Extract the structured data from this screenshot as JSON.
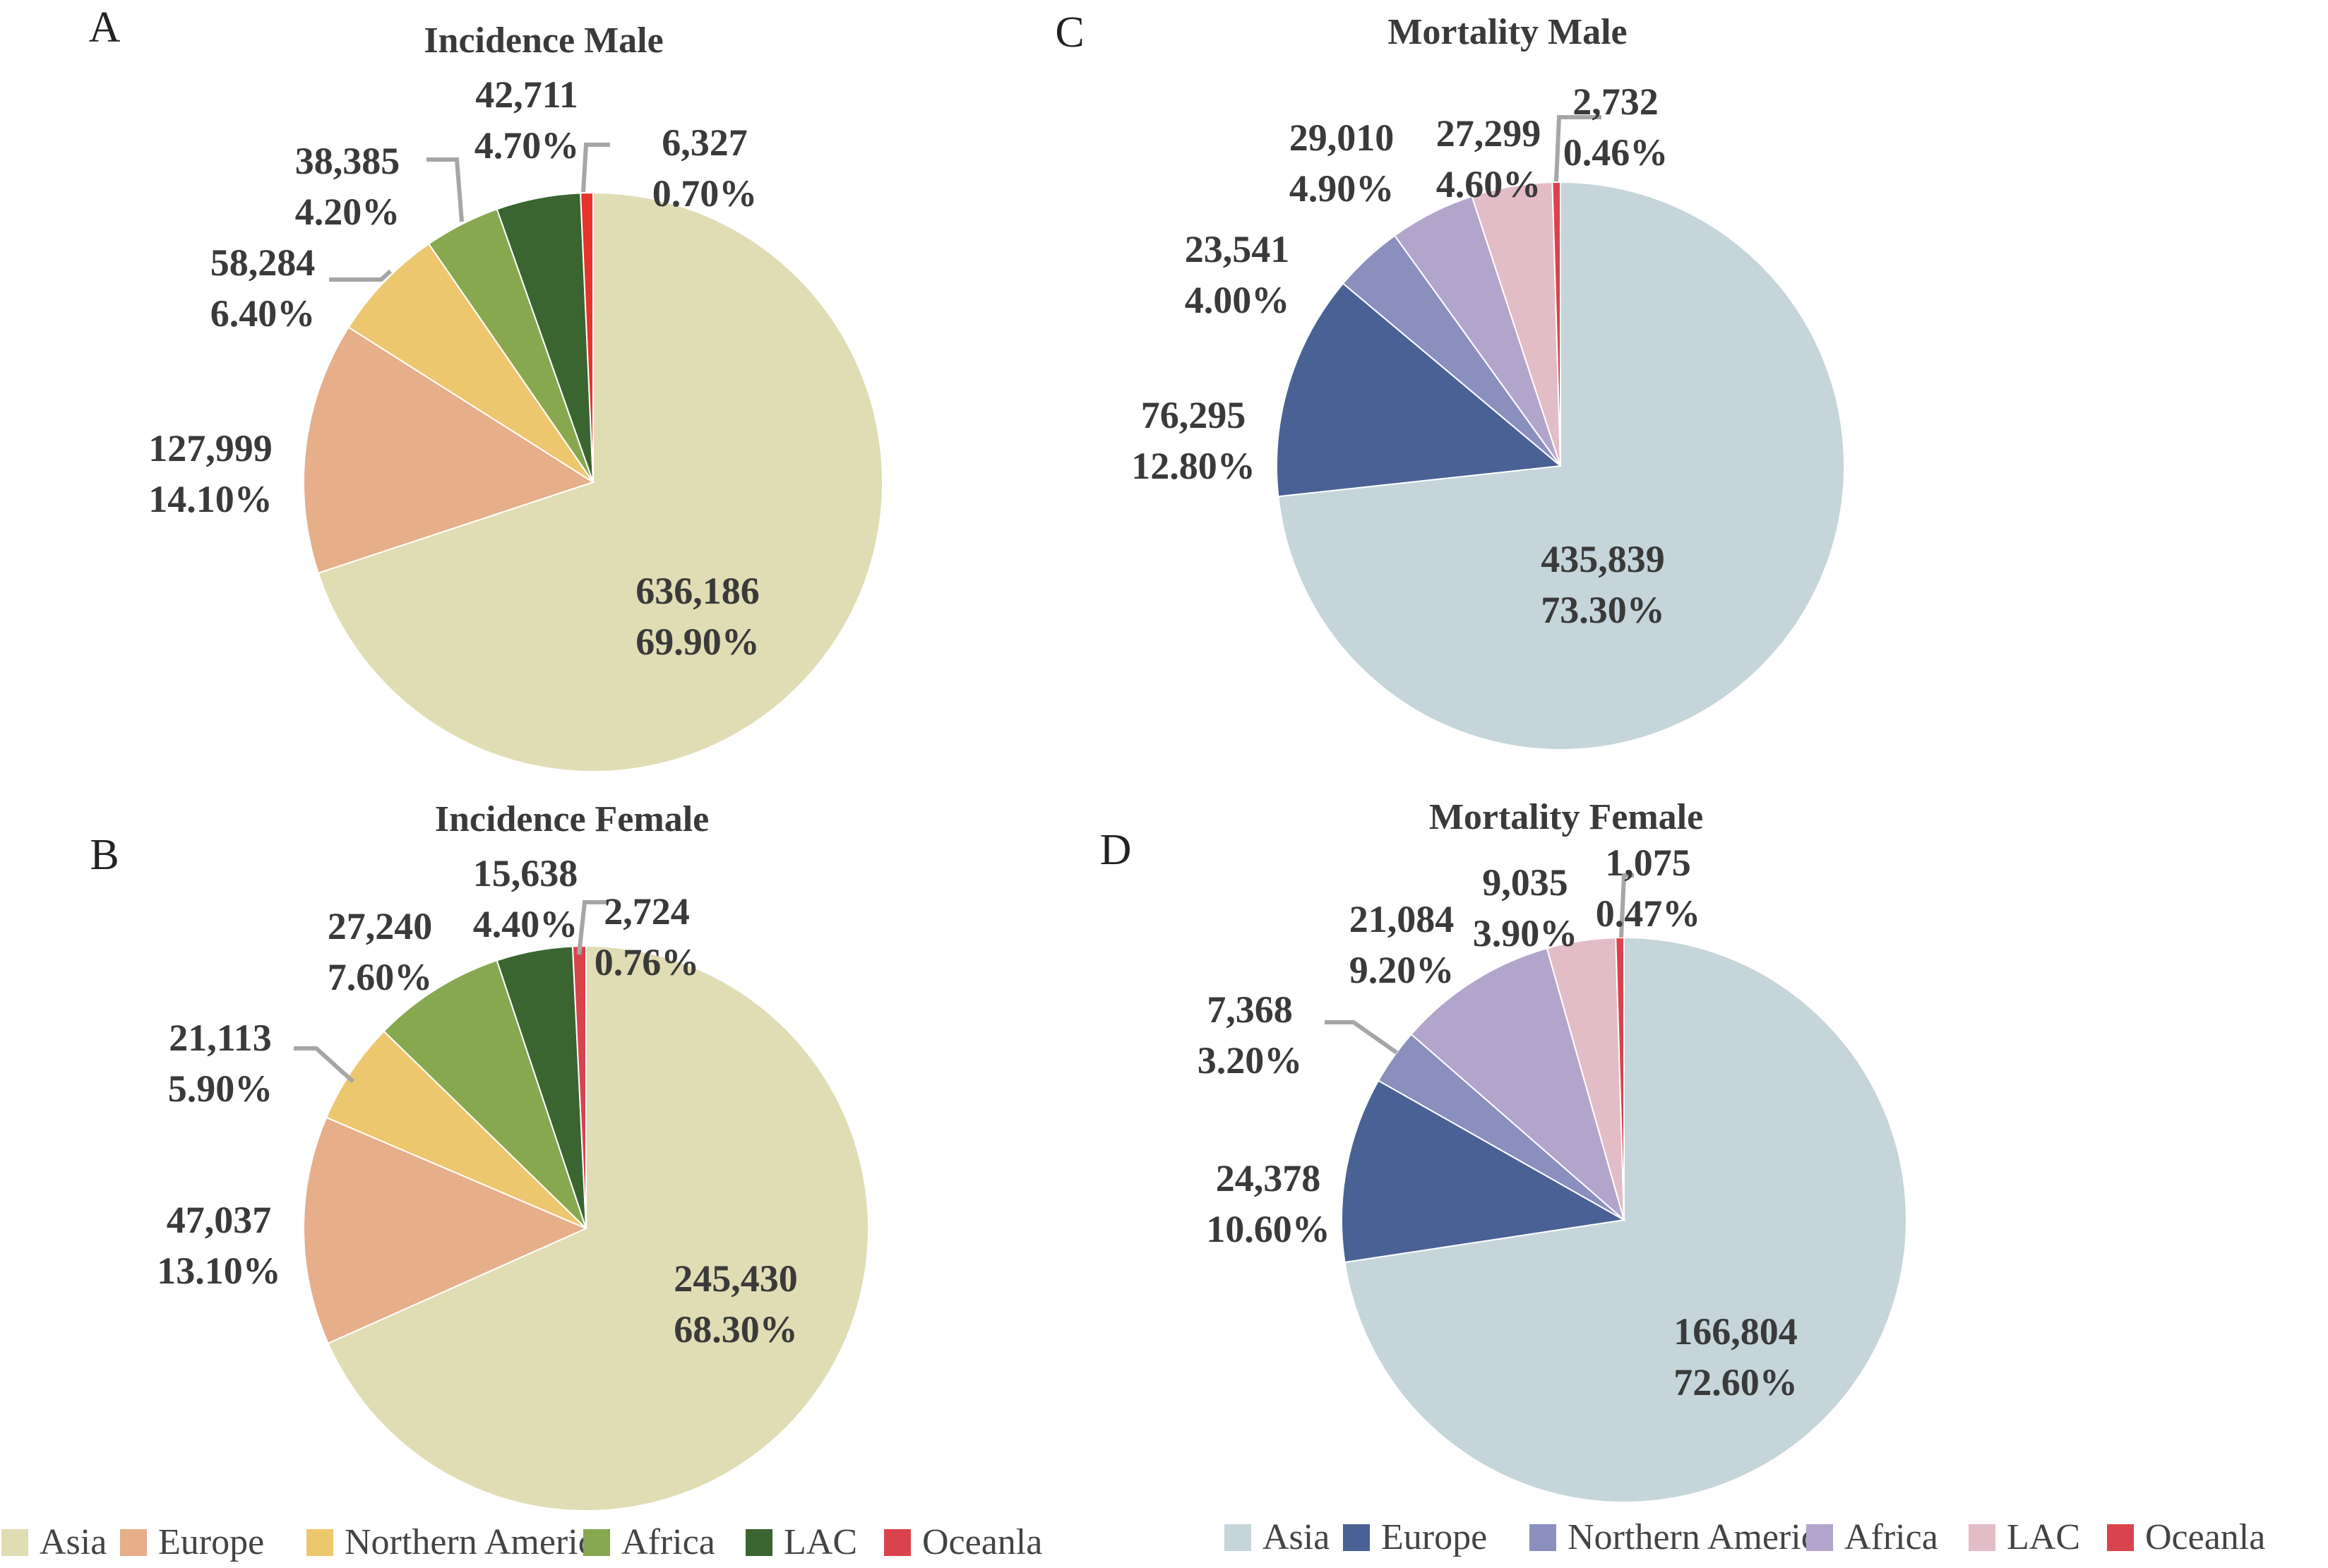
{
  "chart_data": [
    {
      "type": "pie",
      "panel": "A",
      "title": "Incidence Male",
      "slices": [
        {
          "name": "Asia",
          "value": 636186,
          "value_label": "636,186",
          "percent_label": "69.90%",
          "color": "#E0DCB4"
        },
        {
          "name": "Europe",
          "value": 127999,
          "value_label": "127,999",
          "percent_label": "14.10%",
          "color": "#E6AE89"
        },
        {
          "name": "Northern America",
          "value": 58284,
          "value_label": "58,284",
          "percent_label": "6.40%",
          "color": "#EDC76E"
        },
        {
          "name": "Africa",
          "value": 38385,
          "value_label": "38,385",
          "percent_label": "4.20%",
          "color": "#87A84F"
        },
        {
          "name": "LAC",
          "value": 42711,
          "value_label": "42,711",
          "percent_label": "4.70%",
          "color": "#3A6430"
        },
        {
          "name": "Oceanla",
          "value": 6327,
          "value_label": "6,327",
          "percent_label": "0.70%",
          "color": "#E8322E"
        }
      ]
    },
    {
      "type": "pie",
      "panel": "B",
      "title": "Incidence Female",
      "slices": [
        {
          "name": "Asia",
          "value": 245430,
          "value_label": "245,430",
          "percent_label": "68.30%",
          "color": "#E0DCB4"
        },
        {
          "name": "Europe",
          "value": 47037,
          "value_label": "47,037",
          "percent_label": "13.10%",
          "color": "#E6AE89"
        },
        {
          "name": "Northern America",
          "value": 21113,
          "value_label": "21,113",
          "percent_label": "5.90%",
          "color": "#EDC76E"
        },
        {
          "name": "Africa",
          "value": 27240,
          "value_label": "27,240",
          "percent_label": "7.60%",
          "color": "#87A84F"
        },
        {
          "name": "LAC",
          "value": 15638,
          "value_label": "15,638",
          "percent_label": "4.40%",
          "color": "#3A6430"
        },
        {
          "name": "Oceanla",
          "value": 2724,
          "value_label": "2,724",
          "percent_label": "0.76%",
          "color": "#D9434E"
        }
      ]
    },
    {
      "type": "pie",
      "panel": "C",
      "title": "Mortality Male",
      "slices": [
        {
          "name": "Asia",
          "value": 435839,
          "value_label": "435,839",
          "percent_label": "73.30%",
          "color": "#C5D5DA"
        },
        {
          "name": "Europe",
          "value": 76295,
          "value_label": "76,295",
          "percent_label": "12.80%",
          "color": "#4A6195"
        },
        {
          "name": "Northern America",
          "value": 23541,
          "value_label": "23,541",
          "percent_label": "4.00%",
          "color": "#8A8FBD"
        },
        {
          "name": "Africa",
          "value": 29010,
          "value_label": "29,010",
          "percent_label": "4.90%",
          "color": "#B2A5CC"
        },
        {
          "name": "LAC",
          "value": 27299,
          "value_label": "27,299",
          "percent_label": "4.60%",
          "color": "#E2BCC6"
        },
        {
          "name": "Oceanla",
          "value": 2732,
          "value_label": "2,732",
          "percent_label": "0.46%",
          "color": "#D9434E"
        }
      ]
    },
    {
      "type": "pie",
      "panel": "D",
      "title": "Mortality Female",
      "slices": [
        {
          "name": "Asia",
          "value": 166804,
          "value_label": "166,804",
          "percent_label": "72.60%",
          "color": "#C5D5DA"
        },
        {
          "name": "Europe",
          "value": 24378,
          "value_label": "24,378",
          "percent_label": "10.60%",
          "color": "#4A6195"
        },
        {
          "name": "Northern America",
          "value": 7368,
          "value_label": "7,368",
          "percent_label": "3.20%",
          "color": "#8A8FBD"
        },
        {
          "name": "Africa",
          "value": 21084,
          "value_label": "21,084",
          "percent_label": "9.20%",
          "color": "#B2A5CC"
        },
        {
          "name": "LAC",
          "value": 9035,
          "value_label": "9,035",
          "percent_label": "3.90%",
          "color": "#E2BCC6"
        },
        {
          "name": "Oceanla",
          "value": 1075,
          "value_label": "1,075",
          "percent_label": "0.47%",
          "color": "#D9434E"
        }
      ]
    }
  ],
  "legends": [
    {
      "position": "bottom-left",
      "items": [
        {
          "label": "Asia",
          "color": "#E0DCB4"
        },
        {
          "label": "Europe",
          "color": "#E6AE89"
        },
        {
          "label": "Northern America",
          "color": "#EDC76E"
        },
        {
          "label": "Africa",
          "color": "#87A84F"
        },
        {
          "label": "LAC",
          "color": "#3A6430"
        },
        {
          "label": "Oceanla",
          "color": "#D9434E"
        }
      ]
    },
    {
      "position": "bottom-right",
      "items": [
        {
          "label": "Asia",
          "color": "#C5D5DA"
        },
        {
          "label": "Europe",
          "color": "#4A6195"
        },
        {
          "label": "Northern America",
          "color": "#8A8FBD"
        },
        {
          "label": "Africa",
          "color": "#B2A5CC"
        },
        {
          "label": "LAC",
          "color": "#E2BCC6"
        },
        {
          "label": "Oceanla",
          "color": "#D9434E"
        }
      ]
    }
  ],
  "leader_color": "#A6A6A6"
}
